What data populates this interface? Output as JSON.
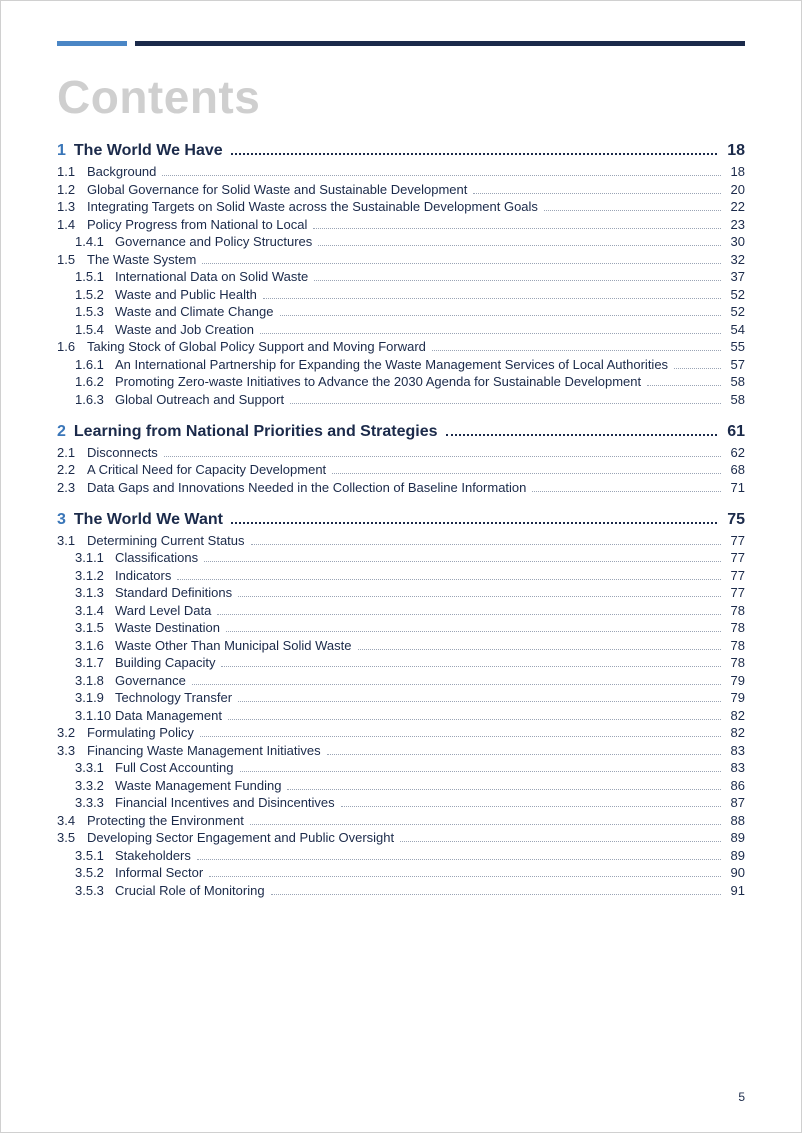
{
  "title": "Contents",
  "page_number": "5",
  "colors": {
    "accent_blue": "#4a86c5",
    "navy": "#1b2a4a",
    "title_grey": "#cfcfcf",
    "leader_grey": "#9aa4b5"
  },
  "chapters": [
    {
      "num": "1",
      "title": "The World We Have",
      "page": "18",
      "children": [
        {
          "num": "1.1",
          "label": "Background",
          "page": "18"
        },
        {
          "num": "1.2",
          "label": "Global Governance for Solid Waste and Sustainable Development",
          "page": "20"
        },
        {
          "num": "1.3",
          "label": "Integrating Targets on Solid Waste across the Sustainable Development Goals",
          "page": "22"
        },
        {
          "num": "1.4",
          "label": "Policy Progress from National to Local",
          "page": "23",
          "children": [
            {
              "num": "1.4.1",
              "label": "Governance and Policy Structures",
              "page": "30"
            }
          ]
        },
        {
          "num": "1.5",
          "label": "The Waste System",
          "page": "32",
          "children": [
            {
              "num": "1.5.1",
              "label": "International Data on Solid Waste",
              "page": "37"
            },
            {
              "num": "1.5.2",
              "label": "Waste and Public Health",
              "page": "52"
            },
            {
              "num": "1.5.3",
              "label": "Waste and Climate Change",
              "page": "52"
            },
            {
              "num": "1.5.4",
              "label": "Waste and Job Creation",
              "page": "54"
            }
          ]
        },
        {
          "num": "1.6",
          "label": "Taking Stock of Global Policy Support and Moving Forward",
          "page": "55",
          "children": [
            {
              "num": "1.6.1",
              "label": "An International Partnership for Expanding the Waste Management Services of Local Authorities",
              "page": "57"
            },
            {
              "num": "1.6.2",
              "label": "Promoting Zero-waste Initiatives to Advance the 2030 Agenda for Sustainable Development",
              "page": "58"
            },
            {
              "num": "1.6.3",
              "label": "Global Outreach and Support",
              "page": "58"
            }
          ]
        }
      ]
    },
    {
      "num": "2",
      "title": "Learning from National Priorities and Strategies",
      "page": "61",
      "children": [
        {
          "num": "2.1",
          "label": "Disconnects",
          "page": "62"
        },
        {
          "num": "2.2",
          "label": "A Critical Need for Capacity Development",
          "page": "68"
        },
        {
          "num": "2.3",
          "label": "Data Gaps and Innovations Needed in the Collection of Baseline Information",
          "page": "71"
        }
      ]
    },
    {
      "num": "3",
      "title": "The World We Want",
      "page": "75",
      "children": [
        {
          "num": "3.1",
          "label": "Determining Current Status",
          "page": "77",
          "children": [
            {
              "num": "3.1.1",
              "label": "Classifications",
              "page": "77"
            },
            {
              "num": "3.1.2",
              "label": "Indicators",
              "page": "77"
            },
            {
              "num": "3.1.3",
              "label": "Standard Definitions",
              "page": "77"
            },
            {
              "num": "3.1.4",
              "label": "Ward Level Data",
              "page": "78"
            },
            {
              "num": "3.1.5",
              "label": "Waste Destination",
              "page": "78"
            },
            {
              "num": "3.1.6",
              "label": "Waste Other Than Municipal Solid Waste",
              "page": "78"
            },
            {
              "num": "3.1.7",
              "label": "Building Capacity",
              "page": "78"
            },
            {
              "num": "3.1.8",
              "label": "Governance",
              "page": "79"
            },
            {
              "num": "3.1.9",
              "label": "Technology Transfer",
              "page": "79"
            },
            {
              "num": "3.1.10",
              "label": "Data Management",
              "page": "82"
            }
          ]
        },
        {
          "num": "3.2",
          "label": "Formulating Policy",
          "page": "82"
        },
        {
          "num": "3.3",
          "label": "Financing Waste Management Initiatives",
          "page": "83",
          "children": [
            {
              "num": "3.3.1",
              "label": "Full Cost Accounting",
              "page": "83"
            },
            {
              "num": "3.3.2",
              "label": "Waste Management Funding",
              "page": "86"
            },
            {
              "num": "3.3.3",
              "label": "Financial Incentives and Disincentives",
              "page": "87"
            }
          ]
        },
        {
          "num": "3.4",
          "label": "Protecting the Environment",
          "page": "88"
        },
        {
          "num": "3.5",
          "label": "Developing Sector Engagement and Public Oversight",
          "page": "89",
          "children": [
            {
              "num": "3.5.1",
              "label": "Stakeholders",
              "page": "89"
            },
            {
              "num": "3.5.2",
              "label": "Informal Sector",
              "page": "90"
            },
            {
              "num": "3.5.3",
              "label": "Crucial Role of Monitoring",
              "page": "91"
            }
          ]
        }
      ]
    }
  ]
}
